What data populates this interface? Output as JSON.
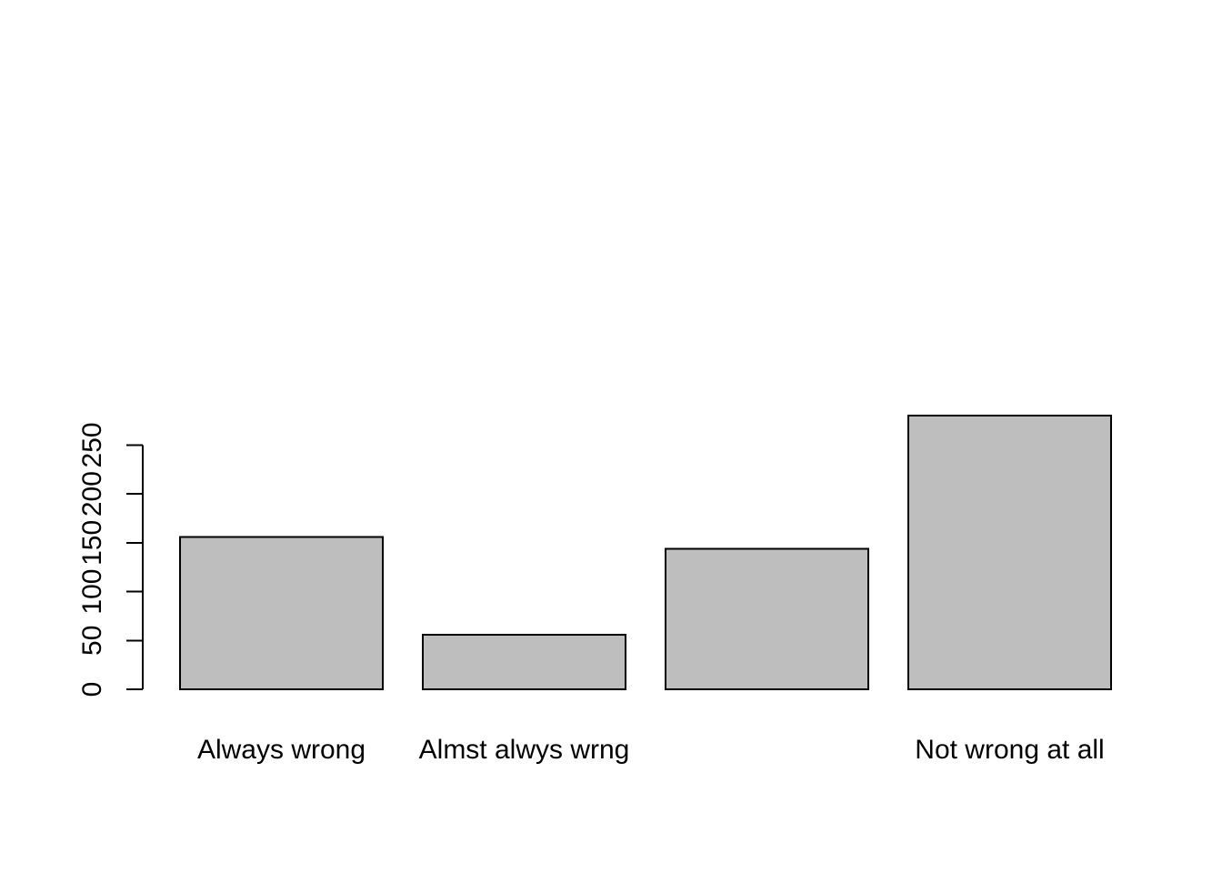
{
  "chart_data": {
    "type": "bar",
    "title": "",
    "xlabel": "",
    "ylabel": "",
    "categories": [
      "Always wrong",
      "Almst alwys wrng",
      "",
      "Not wrong at all"
    ],
    "values": [
      156,
      56,
      144,
      280
    ],
    "ylim": [
      0,
      280
    ],
    "yticks": [
      0,
      50,
      100,
      150,
      200,
      250
    ],
    "ytick_labels": [
      "0",
      "50",
      "100",
      "150",
      "200",
      "250"
    ],
    "grid": false,
    "bar_fill": "#bebebe",
    "bar_stroke": "#000000"
  }
}
